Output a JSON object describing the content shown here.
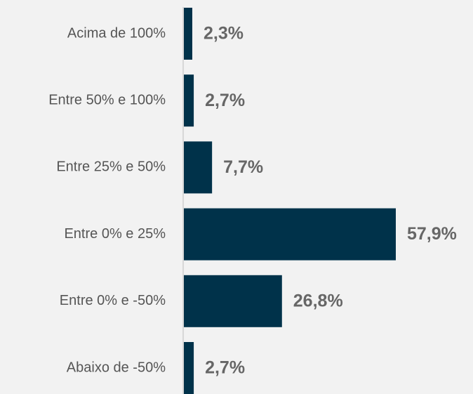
{
  "chart_data": {
    "type": "bar",
    "orientation": "horizontal",
    "categories": [
      "Acima de 100%",
      "Entre 50% e 100%",
      "Entre 25% e 50%",
      "Entre 0% e 25%",
      "Entre 0% e -50%",
      "Abaixo de -50%"
    ],
    "values": [
      2.3,
      2.7,
      7.7,
      57.9,
      26.8,
      2.7
    ],
    "value_labels": [
      "2,3%",
      "2,7%",
      "7,7%",
      "57,9%",
      "26,8%",
      "2,7%"
    ],
    "color": "#00324a"
  }
}
